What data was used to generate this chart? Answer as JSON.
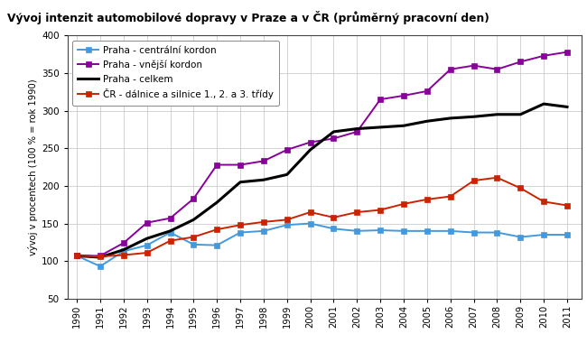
{
  "title": "Vývoj intenzit automobilové dopravy v Praze a v ČR (průměrný pracovní den)",
  "title_bg": "#e8a0a0",
  "ylabel": "vývoj v procentech (100 % = rok 1990)",
  "years": [
    1990,
    1991,
    1992,
    1993,
    1994,
    1995,
    1996,
    1997,
    1998,
    1999,
    2000,
    2001,
    2002,
    2003,
    2004,
    2005,
    2006,
    2007,
    2008,
    2009,
    2010,
    2011
  ],
  "praha_centralni": [
    107,
    93,
    113,
    121,
    138,
    122,
    121,
    138,
    140,
    148,
    150,
    143,
    140,
    141,
    140,
    140,
    140,
    138,
    138,
    132,
    135,
    135
  ],
  "praha_vnejsi": [
    107,
    107,
    124,
    151,
    157,
    183,
    228,
    228,
    233,
    248,
    258,
    263,
    272,
    315,
    320,
    326,
    355,
    360,
    355,
    365,
    373,
    378
  ],
  "praha_celkem": [
    107,
    105,
    115,
    130,
    140,
    155,
    178,
    205,
    208,
    215,
    248,
    272,
    276,
    278,
    280,
    286,
    290,
    292,
    295,
    295,
    309,
    305
  ],
  "cr_dalnice": [
    107,
    106,
    108,
    111,
    127,
    132,
    142,
    148,
    152,
    155,
    165,
    158,
    165,
    168,
    176,
    182,
    186,
    207,
    211,
    197,
    179,
    174
  ],
  "colors": {
    "praha_centralni": "#4499dd",
    "praha_vnejsi": "#880099",
    "praha_celkem": "#000000",
    "cr_dalnice": "#cc2200"
  },
  "legend_labels": {
    "praha_centralni": "Praha - centrální kordon",
    "praha_vnejsi": "Praha - vnější kordon",
    "praha_celkem": "Praha - celkem",
    "cr_dalnice": "ČR - dálnice a silnice 1., 2. a 3. třídy"
  },
  "ylim": [
    50,
    400
  ],
  "yticks": [
    50,
    100,
    150,
    200,
    250,
    300,
    350,
    400
  ],
  "bg_color": "#ffffff",
  "plot_bg": "#ffffff",
  "grid_color": "#cccccc"
}
